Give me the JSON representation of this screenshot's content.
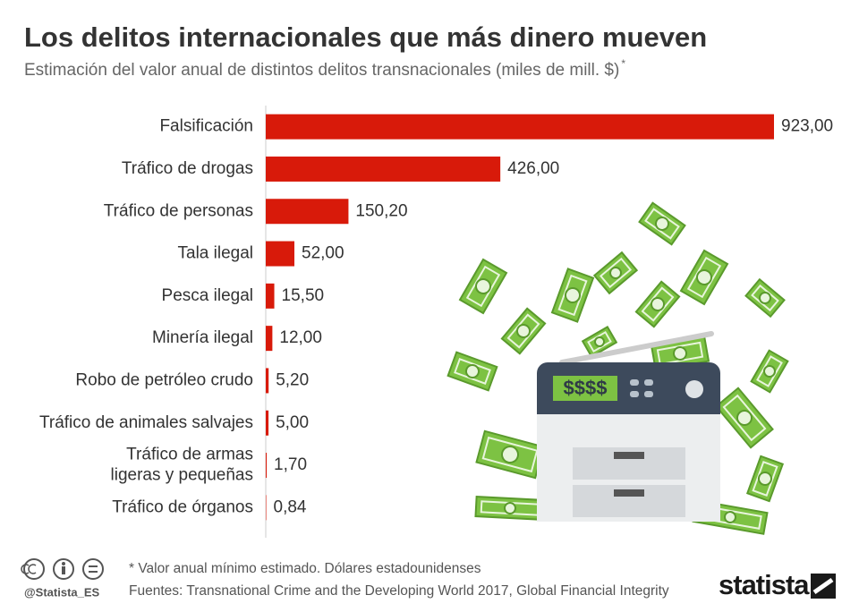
{
  "chart_data": {
    "type": "bar",
    "orientation": "horizontal",
    "title": "Los delitos internacionales que más dinero mueven",
    "subtitle": "Estimación del valor anual de distintos delitos transnacionales (miles de mill. $)",
    "subtitle_note": "*",
    "categories": [
      "Falsificación",
      "Tráfico de drogas",
      "Tráfico de personas",
      "Tala ilegal",
      "Pesca ilegal",
      "Minería ilegal",
      "Robo de petróleo crudo",
      "Tráfico de animales salvajes",
      "Tráfico de armas\nligeras y pequeñas",
      "Tráfico de órganos"
    ],
    "values": [
      923,
      426,
      150.2,
      52,
      15.5,
      12,
      5.2,
      5,
      1.7,
      0.84
    ],
    "value_labels": [
      "923,00",
      "426,00",
      "150,20",
      "52,00",
      "15,50",
      "12,00",
      "5,20",
      "5,00",
      "1,70",
      "0,84"
    ],
    "color": "#d81a0a",
    "xlim": [
      0,
      923
    ],
    "illustration_text": "$$$$",
    "note": "* Valor anual mínimo estimado. Dólares estadounidenses",
    "source": "Fuentes: Transnational Crime and the Developing World 2017, Global Financial Integrity",
    "handle": "@Statista_ES",
    "brand": "statista"
  }
}
